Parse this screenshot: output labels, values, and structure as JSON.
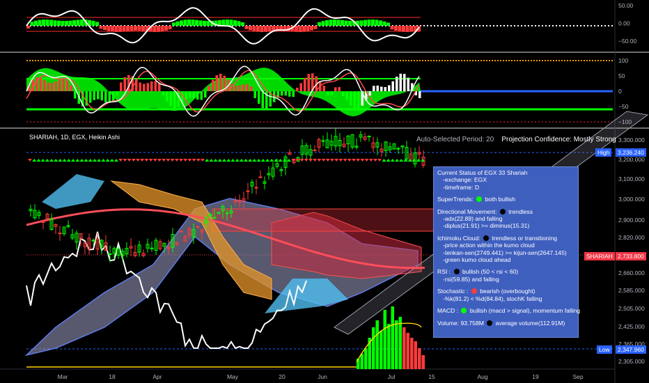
{
  "header": {
    "title": "SHARIAH, 1D, EGX, Heikin Ashi",
    "period_label": "Auto-Selected Period: 20",
    "confidence_label": "Projection Confidence: Mostly Strong"
  },
  "price_tags": {
    "high_label": "High",
    "high_value": "3,236.240",
    "symbol": "SHARIAH",
    "last_value": "2,733.800",
    "low_label": "Low",
    "low_value": "2,347.960"
  },
  "status": {
    "l1": "Current Status of EGX 33 Shariah",
    "l2": "-exchange: EGX",
    "l3": "-timeframe: D",
    "st_a": "SuperTrends:",
    "st_b": "both bullish",
    "dm_a": "Directional Movement:",
    "dm_b": "trendless",
    "dm_l2": "-adx(22.89) and falling",
    "dm_l3": "-diplus(21.91) >= diminus(15.31)",
    "ic_a": "Ichimoku Cloud:",
    "ic_b": "trendless or transitioning",
    "ic_l2": "-price action within the kumo cloud",
    "ic_l3": "-tenkan-sen(2749.441) >= kijun-sen(2647.145)",
    "ic_l4": "-green kumo cloud ahead",
    "rsi_a": "RSI :",
    "rsi_b": "bullish (50 < rsi < 60)",
    "rsi_l2": "-rsi(59.85) and falling",
    "sto_a": "Stochastic :",
    "sto_b": "bearish (overbought)",
    "sto_l2": "-%k(81.2) < %d(84.84), stochK falling",
    "macd_a": "MACD :",
    "macd_b": "bullish (macd > signal), momentum falling",
    "vol_a": "Volume: 93.758M",
    "vol_b": "average volume(112.91M)"
  },
  "colors": {
    "bull": "#00ff00",
    "bear": "#ff3b3b",
    "neutral": "#000000",
    "panel": "#3f5fbf"
  },
  "chart_data": [
    {
      "type": "bar",
      "title": "",
      "y_ticks": [
        "50.00",
        "0.00",
        "−50.00"
      ],
      "ylim": [
        -75,
        75
      ]
    },
    {
      "type": "bar",
      "title": "",
      "y_ticks": [
        "100",
        "50",
        "0",
        "−50",
        "−100"
      ],
      "ylim": [
        -115,
        115
      ]
    },
    {
      "type": "candlestick",
      "title": "SHARIAH, 1D, EGX, Heikin Ashi",
      "x_ticks": [
        "Mar",
        "18",
        "Apr",
        "May",
        "20",
        "Jun",
        "Jul",
        "15",
        "Aug",
        "19",
        "Sep"
      ],
      "y_ticks": [
        "3,300.000",
        "3,200.000",
        "3,100.000",
        "3,000.000",
        "2,900.000",
        "2,820.000",
        "2,740.000",
        "2,660.000",
        "2,585.000",
        "2,505.000",
        "2,425.000",
        "2,365.000",
        "2,305.000"
      ],
      "high": 3236.24,
      "low": 2347.96,
      "last": 2733.8,
      "ylim": [
        2290,
        3320
      ]
    }
  ]
}
